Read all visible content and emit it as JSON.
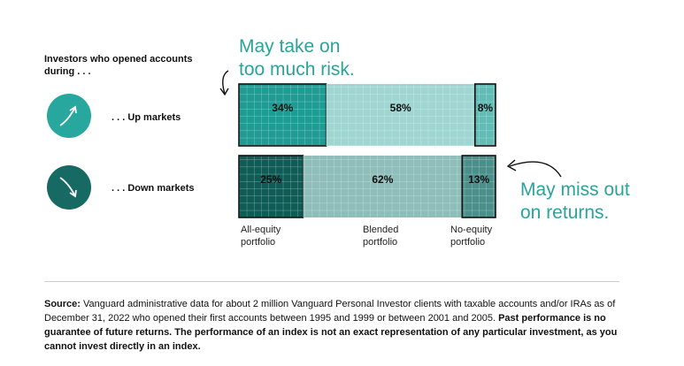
{
  "heading": "Investors who opened accounts during . . .",
  "rows": [
    {
      "label": ". . . Up markets",
      "icon": "up-trend-icon"
    },
    {
      "label": ". . . Down markets",
      "icon": "down-trend-icon"
    }
  ],
  "callouts": {
    "top": [
      "May take on",
      "too much risk."
    ],
    "bottom": [
      "May miss out",
      "on returns."
    ]
  },
  "colors": {
    "accent": "#2aa39b",
    "up_equity": "#1f9b93",
    "up_blended": "#9fd6d2",
    "up_no_equity": "#61bcb5",
    "down_equity": "#0f5c57",
    "down_blended": "#8fbdb9",
    "down_no_equity": "#4a8f8a",
    "up_circle": "#27a79d",
    "down_circle": "#176a64"
  },
  "chart_data": {
    "type": "bar",
    "subtype": "stacked-horizontal-100",
    "categories": [
      "All-equity portfolio",
      "Blended portfolio",
      "No-equity portfolio"
    ],
    "series": [
      {
        "name": ". . . Up markets",
        "values": [
          34,
          58,
          8
        ],
        "labels": [
          "34%",
          "58%",
          "8%"
        ]
      },
      {
        "name": ". . . Down markets",
        "values": [
          25,
          62,
          13
        ],
        "labels": [
          "25%",
          "62%",
          "13%"
        ]
      }
    ],
    "category_labels": [
      [
        "All-equity",
        "portfolio"
      ],
      [
        "Blended",
        "portfolio"
      ],
      [
        "No-equity",
        "portfolio"
      ]
    ],
    "unit": "%"
  },
  "source": {
    "label": "Source:",
    "text": " Vanguard administrative data for about 2 million Vanguard Personal Investor clients with taxable accounts and/or IRAs as of December 31, 2022 who opened their first accounts between 1995 and 1999 or between 2001 and 2005. ",
    "disclaimer": "Past performance is no guarantee of future returns. The performance of an index is not an exact representation of any particular investment, as you cannot invest directly in an index."
  }
}
